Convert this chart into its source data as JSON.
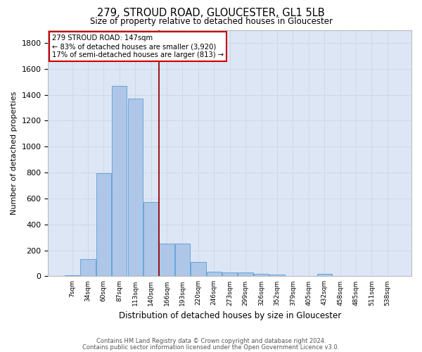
{
  "title": "279, STROUD ROAD, GLOUCESTER, GL1 5LB",
  "subtitle": "Size of property relative to detached houses in Gloucester",
  "xlabel": "Distribution of detached houses by size in Gloucester",
  "ylabel": "Number of detached properties",
  "footnote1": "Contains HM Land Registry data © Crown copyright and database right 2024.",
  "footnote2": "Contains public sector information licensed under the Open Government Licence v3.0.",
  "bar_labels": [
    "7sqm",
    "34sqm",
    "60sqm",
    "87sqm",
    "113sqm",
    "140sqm",
    "166sqm",
    "193sqm",
    "220sqm",
    "246sqm",
    "273sqm",
    "299sqm",
    "326sqm",
    "352sqm",
    "379sqm",
    "405sqm",
    "432sqm",
    "458sqm",
    "485sqm",
    "511sqm",
    "538sqm"
  ],
  "bar_values": [
    10,
    130,
    795,
    1470,
    1370,
    575,
    250,
    250,
    110,
    35,
    28,
    27,
    18,
    13,
    0,
    0,
    18,
    0,
    0,
    0,
    0
  ],
  "bar_color": "#aec6e8",
  "bar_edge_color": "#5a9fd4",
  "grid_color": "#d0d8e8",
  "bg_color": "#dce6f5",
  "vline_x": 5.5,
  "vline_color": "#990000",
  "annotation_line1": "279 STROUD ROAD: 147sqm",
  "annotation_line2": "← 83% of detached houses are smaller (3,920)",
  "annotation_line3": "17% of semi-detached houses are larger (813) →",
  "annotation_box_color": "#cc0000",
  "ylim": [
    0,
    1900
  ],
  "yticks": [
    0,
    200,
    400,
    600,
    800,
    1000,
    1200,
    1400,
    1600,
    1800
  ]
}
